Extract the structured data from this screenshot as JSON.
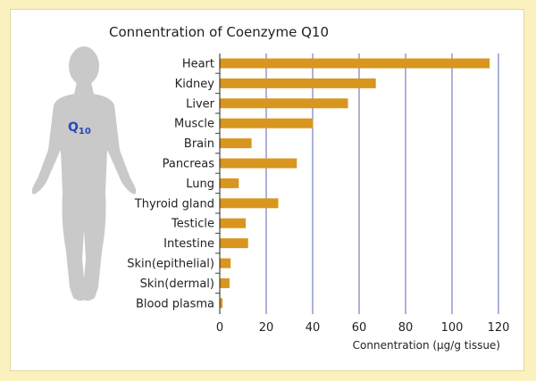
{
  "chart_data": {
    "type": "bar",
    "orientation": "horizontal",
    "title": "Connentration of Coenzyme Q10",
    "xlabel": "Connentration (µg/g tissue)",
    "ylabel": "",
    "xlim": [
      0,
      120
    ],
    "xticks": [
      0,
      20,
      40,
      60,
      80,
      100,
      120
    ],
    "grid": true,
    "categories": [
      "Heart",
      "Kidney",
      "Liver",
      "Muscle",
      "Brain",
      "Pancreas",
      "Lung",
      "Thyroid gland",
      "Testicle",
      "Intestine",
      "Skin(epithelial)",
      "Skin(dermal)",
      "Blood plasma"
    ],
    "values": [
      116,
      67,
      55,
      40,
      13.5,
      33,
      8,
      25,
      11,
      12,
      4.5,
      4,
      1
    ]
  },
  "figure": {
    "label": "Q",
    "label_sub": "10",
    "icon": "human-silhouette-icon"
  },
  "colors": {
    "bar": "#d8961f",
    "grid": "#5a66b6",
    "background": "#fbf1bf",
    "figure": "#c9c9c9",
    "figure_text": "#2a46b8"
  }
}
